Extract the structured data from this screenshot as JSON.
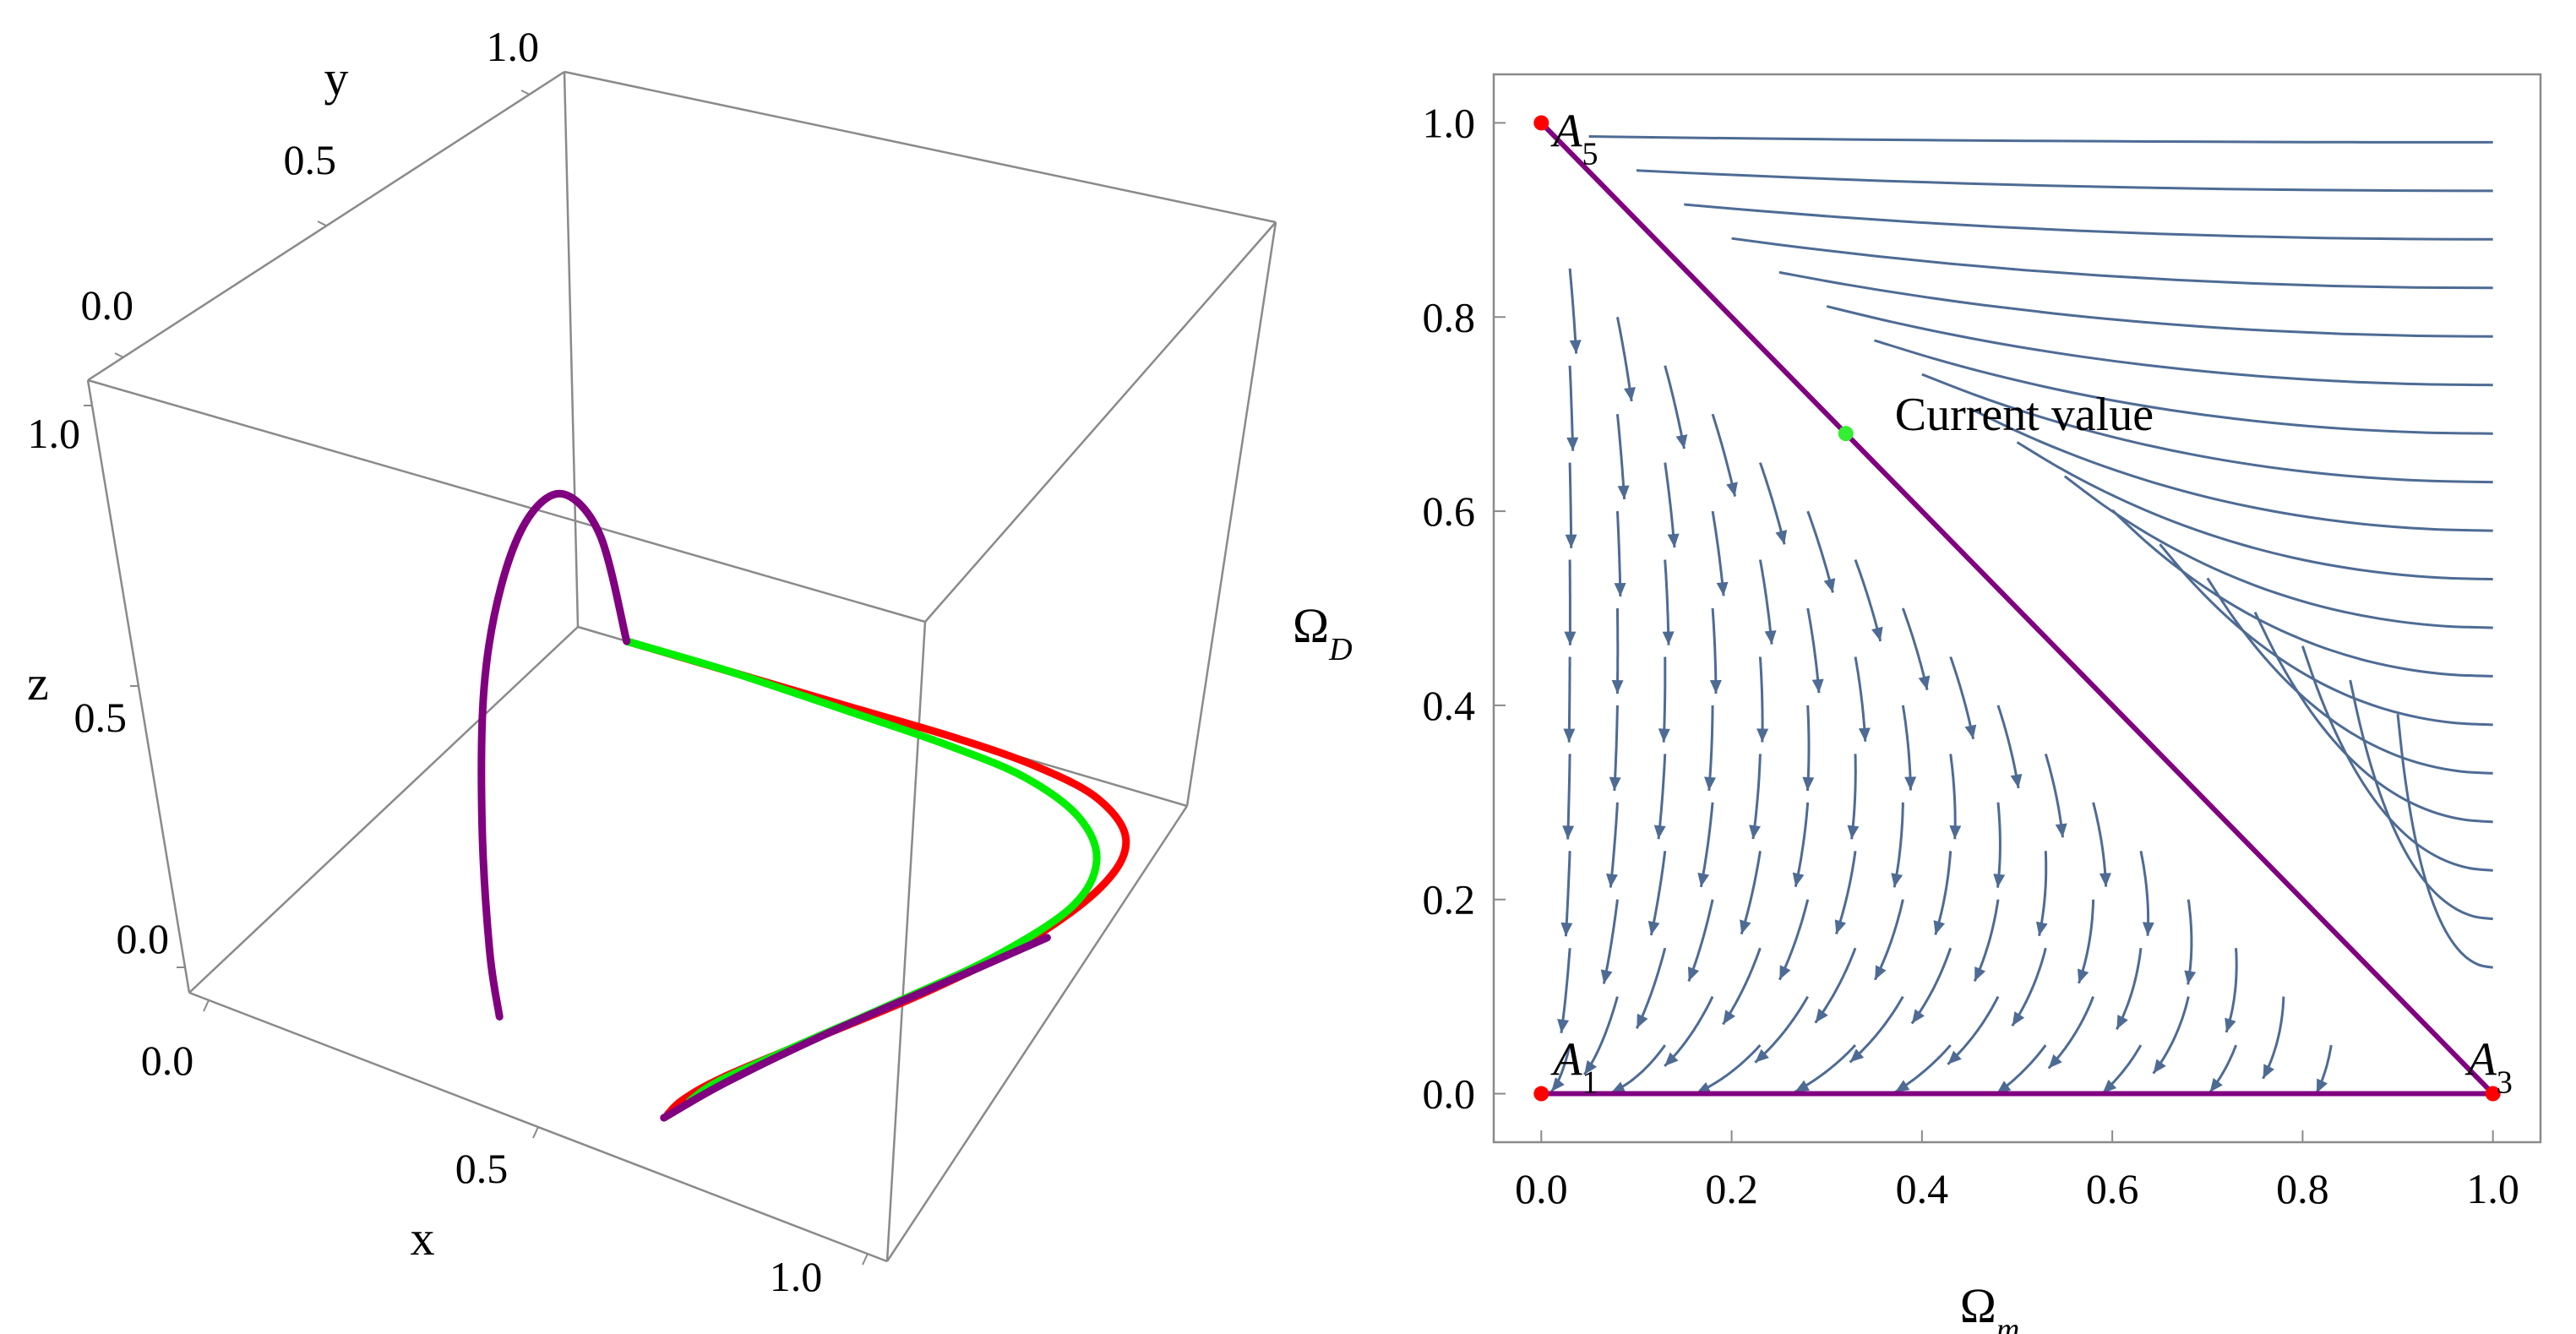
{
  "chart_data": [
    {
      "type": "line",
      "axes": {
        "x_label": "x",
        "y_label": "y",
        "z_label": "z",
        "x_ticks": [
          "0.0",
          "0.5",
          "1.0"
        ],
        "y_ticks": [
          "0.0",
          "0.5",
          "1.0"
        ],
        "z_ticks": [
          "0.0",
          "0.5",
          "1.0"
        ],
        "range": [
          0,
          1
        ]
      },
      "series": [
        {
          "color": "#ff0000",
          "points": [
            [
              0.08,
              0,
              0
            ],
            [
              0.25,
              0,
              0
            ],
            [
              0.45,
              0,
              0
            ],
            [
              0.62,
              0,
              0
            ],
            [
              0.76,
              0.01,
              0
            ],
            [
              0.88,
              0.04,
              0
            ],
            [
              0.97,
              0.11,
              0
            ],
            [
              1.0,
              0.22,
              0
            ],
            [
              0.98,
              0.38,
              0
            ],
            [
              0.92,
              0.55,
              0
            ],
            [
              0.84,
              0.72,
              0
            ],
            [
              0.78,
              0.85,
              0
            ],
            [
              0.76,
              0.92,
              0
            ],
            [
              0.76,
              0.96,
              0
            ]
          ]
        },
        {
          "color": "#00ee00",
          "points": [
            [
              0.08,
              0,
              0
            ],
            [
              0.25,
              0,
              0
            ],
            [
              0.45,
              0.01,
              0
            ],
            [
              0.62,
              0.02,
              0
            ],
            [
              0.76,
              0.04,
              0
            ],
            [
              0.88,
              0.09,
              0
            ],
            [
              0.96,
              0.17,
              0
            ],
            [
              0.99,
              0.28,
              0
            ],
            [
              0.96,
              0.43,
              0
            ],
            [
              0.9,
              0.58,
              0
            ],
            [
              0.83,
              0.74,
              0
            ],
            [
              0.78,
              0.86,
              0
            ],
            [
              0.77,
              0.92,
              0
            ]
          ]
        },
        {
          "color": "#800080",
          "points": [
            [
              0.08,
              0,
              0
            ],
            [
              0.08,
              0.06,
              0.23
            ],
            [
              0.1,
              0.18,
              0.39
            ],
            [
              0.14,
              0.33,
              0.46
            ],
            [
              0.19,
              0.48,
              0.45
            ],
            [
              0.25,
              0.62,
              0.38
            ],
            [
              0.32,
              0.74,
              0.24
            ],
            [
              0.38,
              0.82,
              0.08
            ],
            [
              0.42,
              0.86,
              0
            ]
          ]
        },
        {
          "color": "#800080",
          "points": [
            [
              0.76,
              0.97,
              0
            ],
            [
              0.79,
              0.86,
              0
            ],
            [
              0.85,
              0.7,
              0
            ],
            [
              0.93,
              0.52,
              0
            ],
            [
              1.0,
              0.36,
              0
            ]
          ]
        }
      ]
    },
    {
      "type": "streamplot",
      "xlabel": "Ω",
      "xlabel_sub": "m",
      "ylabel": "Ω",
      "ylabel_sub": "D",
      "xlim": [
        -0.05,
        1.05
      ],
      "ylim": [
        -0.05,
        1.05
      ],
      "x_ticks": [
        "0.0",
        "0.2",
        "0.4",
        "0.6",
        "0.8",
        "1.0"
      ],
      "y_ticks": [
        "0.0",
        "0.2",
        "0.4",
        "0.6",
        "0.8",
        "1.0"
      ],
      "stream_color": "#4e6b94",
      "critical_points": [
        {
          "name": "A",
          "sub": "1",
          "x": 0,
          "y": 0,
          "color": "#ff0000"
        },
        {
          "name": "A",
          "sub": "3",
          "x": 1,
          "y": 0,
          "color": "#ff0000"
        },
        {
          "name": "A",
          "sub": "5",
          "x": 0,
          "y": 1,
          "color": "#ff0000"
        }
      ],
      "current_point": {
        "label": "Current value",
        "x": 0.32,
        "y": 0.68,
        "color": "#33ee33"
      },
      "boundary_color": "#800080"
    }
  ]
}
